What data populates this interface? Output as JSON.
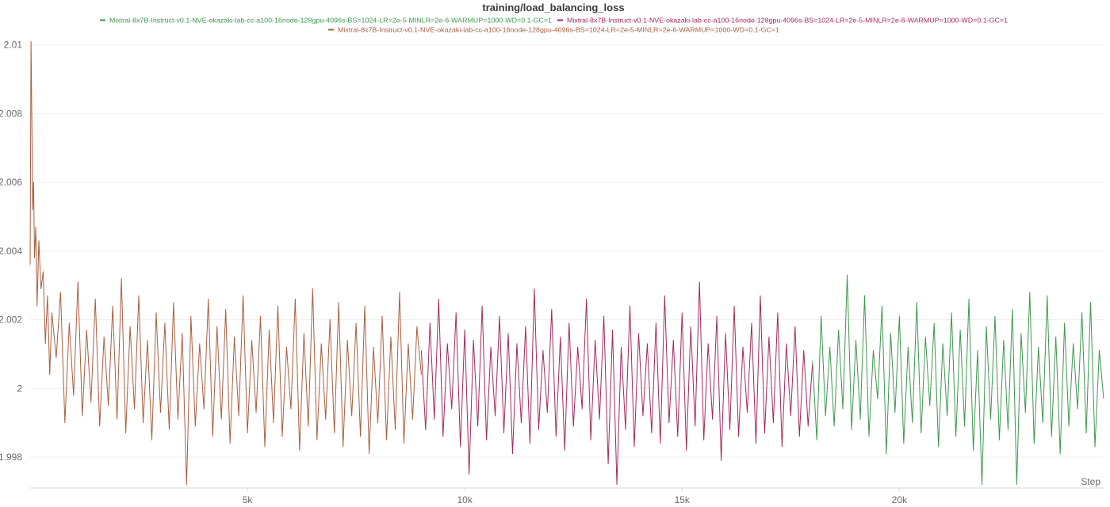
{
  "chart_data": {
    "type": "line",
    "title": "training/load_balancing_loss",
    "xlabel": "Step",
    "ylabel": "",
    "xlim": [
      0,
      24700
    ],
    "ylim": [
      1.9971,
      2.0102
    ],
    "x_ticks": [
      5000,
      10000,
      15000,
      20000
    ],
    "x_tick_labels": [
      "5k",
      "10k",
      "15k",
      "20k"
    ],
    "y_ticks": [
      1.998,
      2,
      2.002,
      2.004,
      2.006,
      2.008,
      2.01
    ],
    "y_tick_labels": [
      "1.998",
      "2",
      "2.002",
      "2.004",
      "2.006",
      "2.008",
      "2.01"
    ],
    "grid": true,
    "legend_position": "top",
    "series": [
      {
        "name": "Mixtral-8x7B-Instruct-v0.1-NVE-okazaki-lab-cc-a100-16node-128gpu-4096s-BS=1024-LR=2e-5-MINLR=2e-6-WARMUP=1000-WD=0.1-GC=1",
        "color": "#3e9651",
        "x": [
          18000,
          18100,
          18200,
          18300,
          18400,
          18500,
          18600,
          18700,
          18800,
          18900,
          19000,
          19100,
          19200,
          19300,
          19400,
          19500,
          19600,
          19700,
          19800,
          19900,
          20000,
          20100,
          20200,
          20300,
          20400,
          20500,
          20600,
          20700,
          20800,
          20900,
          21000,
          21100,
          21200,
          21300,
          21400,
          21500,
          21600,
          21700,
          21800,
          21900,
          22000,
          22100,
          22200,
          22300,
          22400,
          22500,
          22600,
          22700,
          22800,
          22900,
          23000,
          23100,
          23200,
          23300,
          23400,
          23500,
          23600,
          23700,
          23800,
          23900,
          24000,
          24100,
          24200,
          24300,
          24400,
          24500,
          24600,
          24700
        ],
        "values": [
          2.0008,
          1.9985,
          2.0021,
          1.9992,
          2.0012,
          1.9989,
          2.0017,
          1.9994,
          2.0033,
          1.9988,
          2.0014,
          1.9991,
          2.0027,
          1.9986,
          2.0011,
          1.9997,
          2.0024,
          1.9981,
          2.0016,
          1.9993,
          2.0021,
          1.9984,
          2.0012,
          1.999,
          2.0025,
          1.9987,
          2.0015,
          1.9995,
          2.0019,
          1.9983,
          2.0013,
          1.9992,
          2.0022,
          1.9986,
          2.0017,
          1.9989,
          2.0026,
          1.9982,
          2.0011,
          1.9972,
          2.0018,
          1.9991,
          2.0021,
          1.9985,
          2.0014,
          1.9988,
          2.0023,
          1.9972,
          2.0016,
          1.9993,
          2.0028,
          1.9984,
          2.0012,
          1.999,
          2.0027,
          1.9986,
          2.0015,
          1.9981,
          2.0019,
          1.9989,
          2.0013,
          1.9994,
          2.0022,
          1.9987,
          2.0025,
          1.9983,
          2.0011,
          1.9997
        ]
      },
      {
        "name": "Mixtral-8x7B-Instruct-v0.1-NVE-okazaki-lab-cc-a100-16node-128gpu-4096s-BS=1024-LR=2e-5-MINLR=2e-6-WARMUP=1000-WD=0.1-GC=1",
        "color": "#a3295f",
        "x": [
          9000,
          9100,
          9200,
          9300,
          9400,
          9500,
          9600,
          9700,
          9800,
          9900,
          10000,
          10100,
          10200,
          10300,
          10400,
          10500,
          10600,
          10700,
          10800,
          10900,
          11000,
          11100,
          11200,
          11300,
          11400,
          11500,
          11600,
          11700,
          11800,
          11900,
          12000,
          12100,
          12200,
          12300,
          12400,
          12500,
          12600,
          12700,
          12800,
          12900,
          13000,
          13100,
          13200,
          13300,
          13400,
          13500,
          13600,
          13700,
          13800,
          13900,
          14000,
          14100,
          14200,
          14300,
          14400,
          14500,
          14600,
          14700,
          14800,
          14900,
          15000,
          15100,
          15200,
          15300,
          15400,
          15500,
          15600,
          15700,
          15800,
          15900,
          16000,
          16100,
          16200,
          16300,
          16400,
          16500,
          16600,
          16700,
          16800,
          16900,
          17000,
          17100,
          17200,
          17300,
          17400,
          17500,
          17600,
          17700,
          17800,
          17900,
          18000
        ],
        "values": [
          2.0011,
          1.9988,
          2.0019,
          1.9991,
          2.0026,
          1.9986,
          2.0013,
          1.9994,
          2.0022,
          1.9983,
          2.0017,
          1.9975,
          2.0014,
          1.9989,
          2.0024,
          1.9985,
          2.0012,
          1.9992,
          2.0021,
          1.9987,
          2.0016,
          1.9981,
          2.0013,
          1.999,
          2.0018,
          1.9984,
          2.0029,
          1.9988,
          2.0011,
          1.9993,
          2.0023,
          1.9986,
          2.0015,
          1.9982,
          2.0019,
          1.9989,
          2.0012,
          1.9994,
          2.0026,
          1.9985,
          2.0014,
          1.9991,
          2.0021,
          1.9978,
          2.0017,
          1.9972,
          2.0012,
          1.9988,
          2.0024,
          1.9983,
          2.0016,
          1.9992,
          2.0013,
          1.9987,
          2.0019,
          1.9984,
          2.0027,
          1.999,
          2.0014,
          1.9986,
          2.0022,
          1.9982,
          2.0018,
          1.9989,
          2.0031,
          1.9985,
          2.0013,
          1.9991,
          2.0021,
          1.9979,
          2.0016,
          1.9988,
          2.0024,
          1.9986,
          2.0012,
          1.9993,
          2.0019,
          1.9984,
          2.0027,
          1.9987,
          2.0015,
          1.999,
          2.0022,
          1.9983,
          2.0013,
          1.9992,
          2.0018,
          1.9986,
          2.0011,
          1.9989,
          2.0007
        ]
      },
      {
        "name": "Mixtral-8x7B-Instruct-v0.1-NVE-okazaki-lab-cc-a100-16node-128gpu-4096s-BS=1024-LR=2e-5-MINLR=2e-6-WARMUP=1000-WD=0.1-GC=1",
        "color": "#a85f40",
        "x": [
          0,
          20,
          40,
          60,
          80,
          100,
          130,
          160,
          200,
          250,
          300,
          350,
          400,
          450,
          500,
          600,
          700,
          800,
          900,
          1000,
          1100,
          1200,
          1300,
          1400,
          1500,
          1600,
          1700,
          1800,
          1900,
          2000,
          2100,
          2200,
          2300,
          2400,
          2500,
          2600,
          2700,
          2800,
          2900,
          3000,
          3100,
          3200,
          3300,
          3400,
          3500,
          3600,
          3700,
          3800,
          3900,
          4000,
          4100,
          4200,
          4300,
          4400,
          4500,
          4600,
          4700,
          4800,
          4900,
          5000,
          5100,
          5200,
          5300,
          5400,
          5500,
          5600,
          5700,
          5800,
          5900,
          6000,
          6100,
          6200,
          6300,
          6400,
          6500,
          6600,
          6700,
          6800,
          6900,
          7000,
          7100,
          7200,
          7300,
          7400,
          7500,
          7600,
          7700,
          7800,
          7900,
          8000,
          8100,
          8200,
          8300,
          8400,
          8500,
          8600,
          8700,
          8800,
          8900,
          9000
        ],
        "values": [
          2.0036,
          2.0101,
          2.0078,
          2.0052,
          2.006,
          2.0038,
          2.0047,
          2.0024,
          2.0043,
          2.0029,
          2.0034,
          2.0013,
          2.0027,
          2.0004,
          2.0022,
          2.0009,
          2.0028,
          1.999,
          2.0019,
          1.9998,
          2.0031,
          1.9992,
          2.0017,
          1.9996,
          2.0026,
          1.9989,
          2.0015,
          1.9995,
          2.0024,
          1.9991,
          2.0032,
          1.9987,
          2.0018,
          1.9994,
          2.0027,
          1.999,
          2.0014,
          1.9985,
          2.0022,
          1.9993,
          2.0019,
          1.9988,
          2.0025,
          1.9991,
          2.0016,
          1.9972,
          2.0021,
          1.9989,
          2.0013,
          1.9994,
          2.0026,
          1.9986,
          2.0018,
          1.9991,
          2.0023,
          1.9984,
          2.0015,
          1.9992,
          2.0027,
          1.9987,
          2.0014,
          1.9993,
          2.0021,
          1.9983,
          2.0017,
          1.999,
          2.0024,
          1.9986,
          2.0012,
          1.9994,
          2.0026,
          1.9982,
          2.0016,
          1.9989,
          2.0029,
          1.9985,
          2.0013,
          1.9991,
          2.002,
          1.9987,
          2.0025,
          1.9983,
          2.0014,
          1.9992,
          2.0019,
          1.9986,
          2.0024,
          1.9981,
          2.0012,
          1.999,
          2.0021,
          1.9985,
          2.0015,
          1.9988,
          2.0028,
          1.9984,
          2.0013,
          1.9991,
          2.0018,
          2.0004
        ]
      }
    ]
  }
}
